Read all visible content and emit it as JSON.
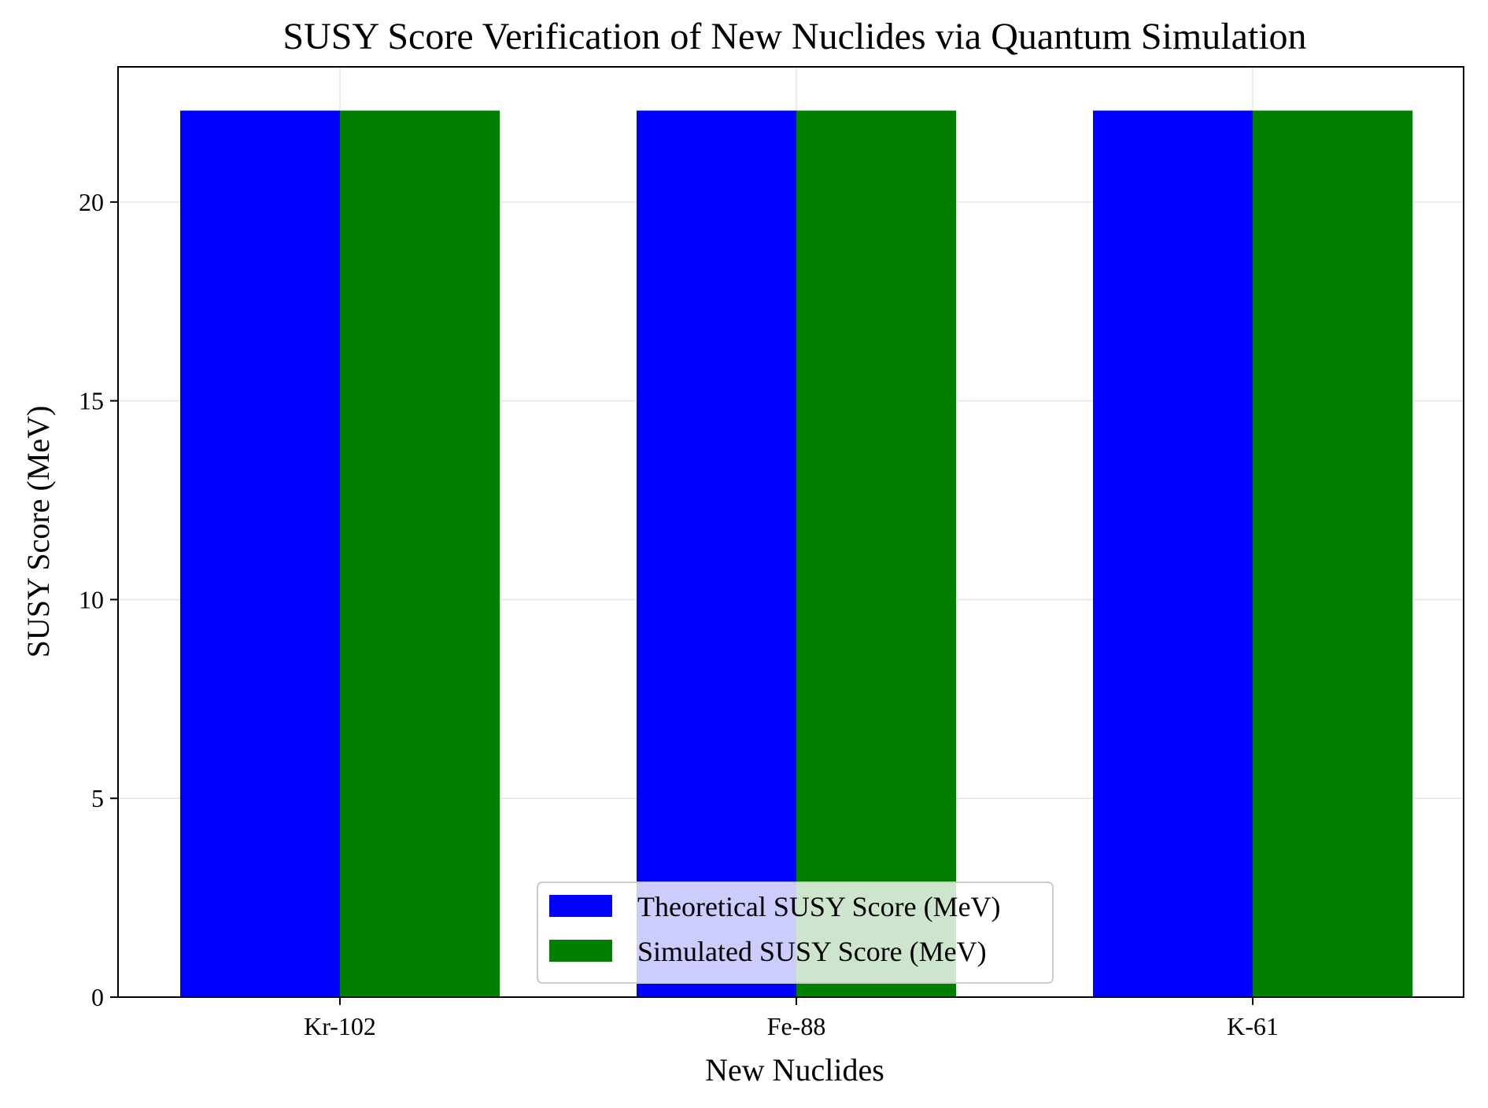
{
  "chart_data": {
    "type": "bar",
    "title": "SUSY Score Verification of New Nuclides via Quantum Simulation",
    "xlabel": "New Nuclides",
    "ylabel": "SUSY Score (MeV)",
    "categories": [
      "Kr-102",
      "Fe-88",
      "K-61"
    ],
    "series": [
      {
        "name": "Theoretical SUSY Score (MeV)",
        "color": "#0000ff",
        "values": [
          22.3,
          22.3,
          22.3
        ]
      },
      {
        "name": "Simulated SUSY Score (MeV)",
        "color": "#007f00",
        "values": [
          22.3,
          22.3,
          22.3
        ]
      }
    ],
    "ylim": [
      0,
      23.4
    ],
    "yticks": [
      "0",
      "5",
      "10",
      "15",
      "20"
    ],
    "grid": true,
    "legend_position": "lower-center"
  }
}
